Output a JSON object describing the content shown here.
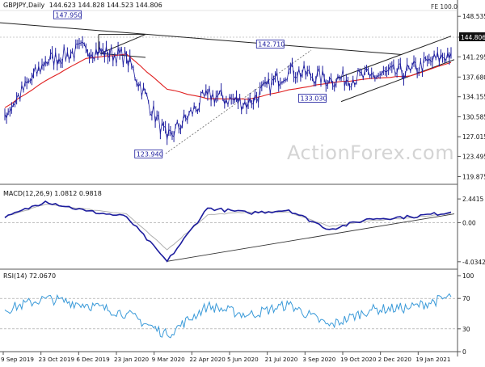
{
  "header": {
    "symbol": "GBPJPY,Daily",
    "ohlc": "144.623 144.828 144.523 144.806",
    "fe_label": "FE 100.0"
  },
  "watermark": "ActionForex.com",
  "colors": {
    "price": "#1c1c9e",
    "ma55": "#e02020",
    "channel": "#222222",
    "macd": "#1c1c9e",
    "signal": "#b0b0b0",
    "rsi": "#3a9ad9",
    "ref": "#9a9a9a"
  },
  "x_ticks": [
    "9 Sep 2019",
    "23 Oct 2019",
    "6 Dec 2019",
    "23 Jan 2020",
    "9 Mar 2020",
    "22 Apr 2020",
    "5 Jun 2020",
    "21 Jul 2020",
    "3 Sep 2020",
    "19 Oct 2020",
    "2 Dec 2020",
    "19 Jan 2021"
  ],
  "chart_data": [
    {
      "type": "line",
      "title": "",
      "ylim": [
        118.5,
        150.3
      ],
      "y_ticks": [
        "148.535",
        "144.806",
        "141.295",
        "137.680",
        "134.155",
        "130.585",
        "127.015",
        "123.495",
        "119.875"
      ],
      "x": [
        "9 Sep 2019",
        "23 Oct 2019",
        "6 Dec 2019",
        "23 Jan 2020",
        "9 Mar 2020",
        "22 Apr 2020",
        "5 Jun 2020",
        "21 Jul 2020",
        "3 Sep 2020",
        "19 Oct 2020",
        "2 Dec 2020",
        "19 Jan 2021"
      ],
      "series": [
        {
          "values": [
            131.0,
            140.5,
            142.8,
            141.2,
            126.5,
            134.5,
            133.0,
            139.0,
            137.2,
            137.8,
            138.8,
            142.0
          ]
        },
        {
          "values": [
            132.2,
            137.0,
            141.0,
            141.8,
            135.5,
            133.8,
            133.7,
            135.4,
            136.6,
            137.4,
            137.9,
            140.3
          ]
        }
      ],
      "annotations": [
        {
          "label": "147.950",
          "x": "6 Dec 2019",
          "y": 147.95
        },
        {
          "label": "123.940",
          "x": "9 Mar 2020",
          "y": 123.94
        },
        {
          "label": "142.710",
          "x": "21 Jul 2020",
          "y": 142.71
        },
        {
          "label": "133.030",
          "x": "3 Sep 2020",
          "y": 133.03
        }
      ],
      "last_price": "144.806"
    },
    {
      "type": "line",
      "title": "MACD(12,26,9) 1.0812 0.9818",
      "ylim": [
        -4.8,
        3.2
      ],
      "y_ticks": [
        "2.4415",
        "0.00",
        "-4.0342"
      ],
      "series": [
        {
          "values": [
            0.5,
            2.2,
            1.2,
            0.6,
            -4.0,
            1.5,
            1.0,
            1.3,
            -0.7,
            0.4,
            0.6,
            1.08
          ]
        },
        {
          "values": [
            0.6,
            1.9,
            1.4,
            0.9,
            -2.8,
            0.8,
            1.1,
            1.1,
            -0.4,
            0.2,
            0.5,
            0.98
          ]
        }
      ]
    },
    {
      "type": "line",
      "title": "RSI(14) 72.0670",
      "ylim": [
        0,
        100
      ],
      "y_ticks": [
        "100",
        "70",
        "30",
        "0"
      ],
      "series": [
        {
          "values": [
            55,
            70,
            62,
            50,
            22,
            60,
            48,
            62,
            34,
            55,
            58,
            72.07
          ]
        }
      ]
    }
  ]
}
